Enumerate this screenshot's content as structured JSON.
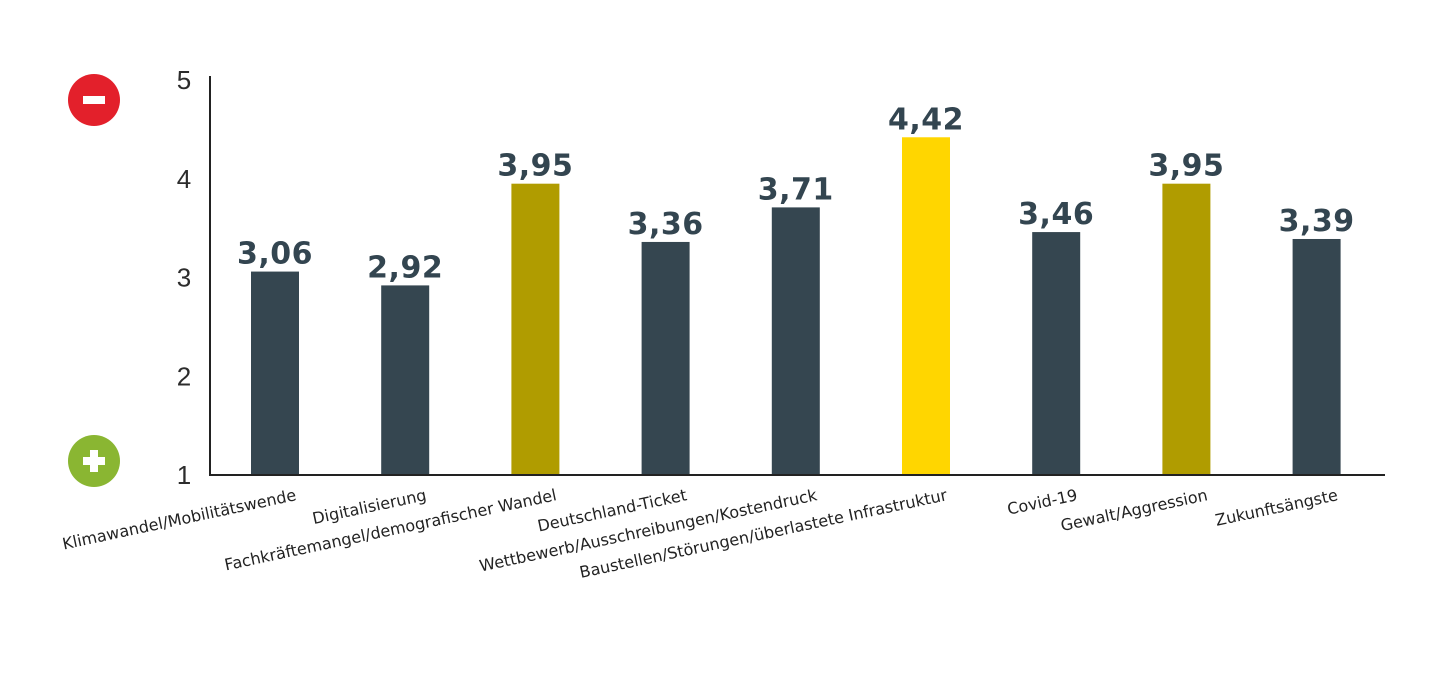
{
  "chart_data": {
    "type": "bar",
    "title": "",
    "xlabel": "",
    "ylabel": "",
    "ylim": [
      1,
      5
    ],
    "yticks": [
      1,
      2,
      3,
      4,
      5
    ],
    "grid": false,
    "categories": [
      "Klimawandel/Mobilitätswende",
      "Digitalisierung",
      "Fachkräftemangel/demografischer Wandel",
      "Deutschland-Ticket",
      "Wettbewerb/Ausschreibungen/Kostendruck",
      "Baustellen/Störungen/überlastete Infrastruktur",
      "Covid-19",
      "Gewalt/Aggression",
      "Zukunftsängste"
    ],
    "values": [
      3.06,
      2.92,
      3.95,
      3.36,
      3.71,
      4.42,
      3.46,
      3.95,
      3.39
    ],
    "value_labels": [
      "3,06",
      "2,92",
      "3,95",
      "3,36",
      "3,71",
      "4,42",
      "3,46",
      "3,95",
      "3,39"
    ],
    "bar_colors": [
      "#354650",
      "#354650",
      "#b09c00",
      "#354650",
      "#354650",
      "#ffd600",
      "#354650",
      "#b09c00",
      "#354650"
    ],
    "scale_markers": {
      "top": {
        "symbol": "−",
        "meaning": "negative",
        "color": "#e3202b",
        "icon": "minus-circle-icon"
      },
      "bottom": {
        "symbol": "+",
        "meaning": "positive",
        "color": "#8ab632",
        "icon": "plus-circle-icon"
      }
    }
  }
}
